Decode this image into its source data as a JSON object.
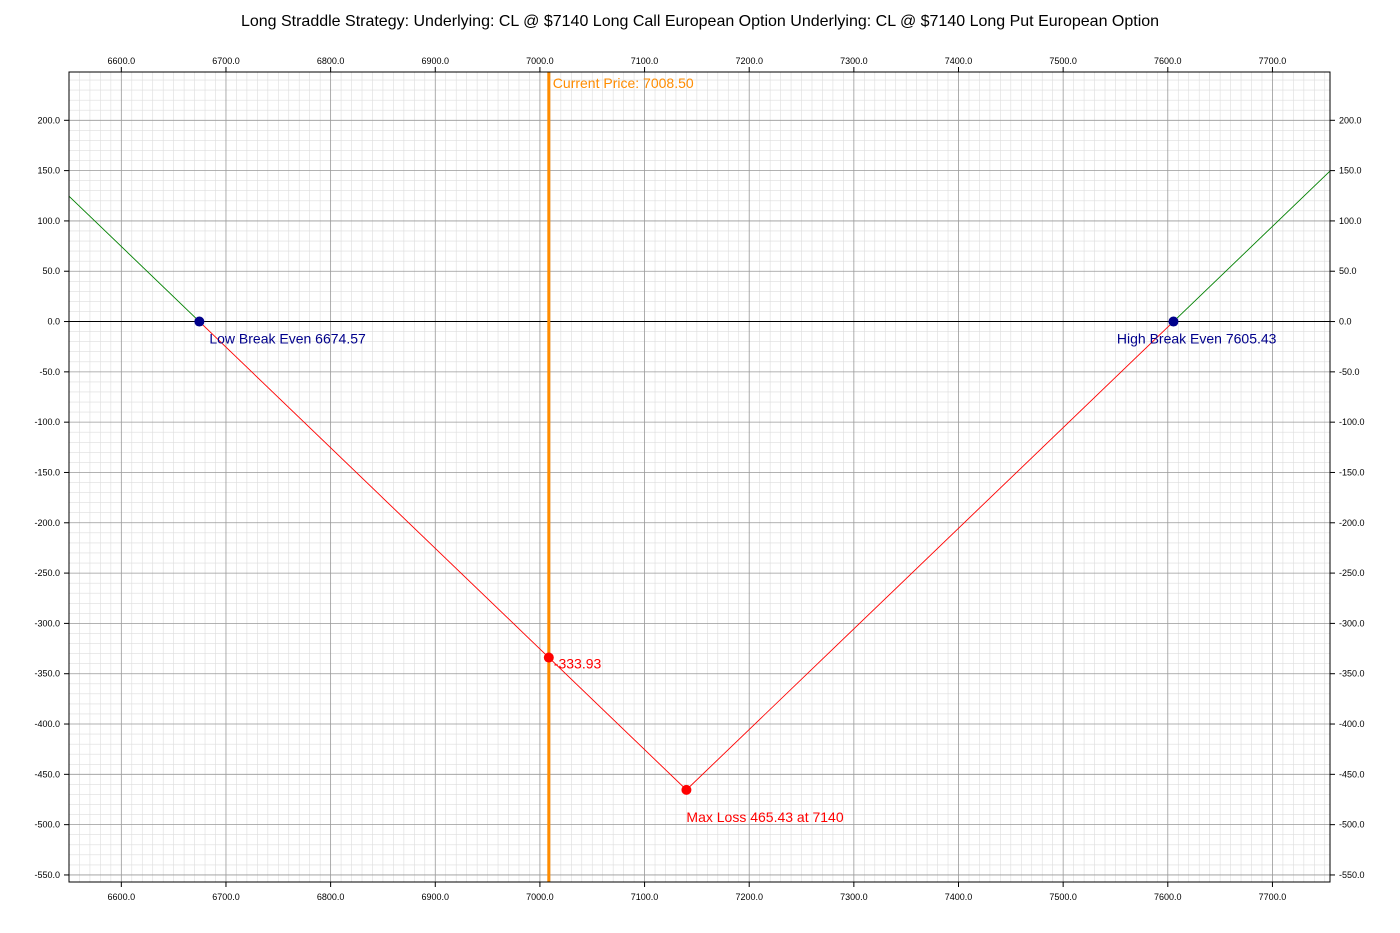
{
  "chart_data": {
    "type": "line",
    "title": "Long Straddle Strategy:   Underlying: CL @ $7140 Long Call European Option  Underlying: CL @ $7140 Long Put European Option",
    "xlabel": "",
    "ylabel": "",
    "xlim": [
      6550,
      7755
    ],
    "ylim": [
      -557,
      248
    ],
    "x_ticks": [
      6600,
      6700,
      6800,
      6900,
      7000,
      7100,
      7200,
      7300,
      7400,
      7500,
      7600,
      7700
    ],
    "x_tick_labels": [
      "6600.0",
      "6700.0",
      "6800.0",
      "6900.0",
      "7000.0",
      "7100.0",
      "7200.0",
      "7300.0",
      "7400.0",
      "7500.0",
      "7600.0",
      "7700.0"
    ],
    "y_ticks": [
      200,
      150,
      100,
      50,
      0,
      -50,
      -100,
      -150,
      -200,
      -250,
      -300,
      -350,
      -400,
      -450,
      -500,
      -550
    ],
    "y_tick_labels": [
      "200.0",
      "150.0",
      "100.0",
      "50.0",
      "0.0",
      "-50.0",
      "-100.0",
      "-150.0",
      "-200.0",
      "-250.0",
      "-300.0",
      "-350.0",
      "-400.0",
      "-450.0",
      "-500.0",
      "-550.0"
    ],
    "grid": true,
    "series": [
      {
        "color": "#008000",
        "x": [
          6550,
          6674.57
        ],
        "y": [
          124.57,
          0
        ]
      },
      {
        "color": "#ff0000",
        "x": [
          6674.57,
          7140,
          7605.43
        ],
        "y": [
          0,
          -465.43,
          0
        ]
      },
      {
        "color": "#008000",
        "x": [
          7605.43,
          7755
        ],
        "y": [
          0,
          149.57
        ]
      }
    ],
    "current_price": {
      "value": 7008.5,
      "label": "Current Price: 7008.50",
      "color": "#ff8c00"
    },
    "points": [
      {
        "x": 6674.57,
        "y": 0,
        "color": "#00008b",
        "label": "Low Break Even 6674.57"
      },
      {
        "x": 7605.43,
        "y": 0,
        "color": "#00008b",
        "label": "High Break Even 7605.43"
      },
      {
        "x": 7140,
        "y": -465.43,
        "color": "#ff0000",
        "label": "Max Loss 465.43 at 7140"
      },
      {
        "x": 7008.5,
        "y": -333.93,
        "color": "#ff0000",
        "label": "-333.93"
      }
    ],
    "zero_line_color": "#000000",
    "grid_major_color": "#999999",
    "grid_minor_color": "#dddddd"
  }
}
